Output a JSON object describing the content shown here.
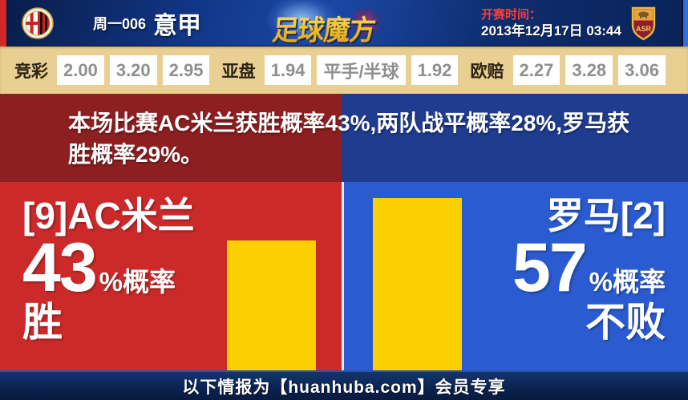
{
  "header": {
    "match_code": "周一006",
    "league": "意甲",
    "brand_logo_text": "足球魔方",
    "kickoff_label": "开赛时间：",
    "kickoff_time": "2013年12月17日 03:44",
    "home_crest": "ac-milan-crest",
    "away_crest": "roma-crest"
  },
  "odds_bar": {
    "jingcai": {
      "label": "竞彩",
      "win": "2.00",
      "draw": "3.20",
      "lose": "2.95"
    },
    "yapan": {
      "label": "亚盘",
      "home": "1.94",
      "handicap": "平手/半球",
      "away": "1.92"
    },
    "oupei": {
      "label": "欧赔",
      "win": "2.27",
      "draw": "3.28",
      "lose": "3.06"
    }
  },
  "summary": {
    "text": "本场比赛AC米兰获胜概率43%,两队战平概率28%,罗马获胜概率29%。"
  },
  "home_panel": {
    "team": "[9]AC米兰",
    "percent": "43",
    "percent_suffix": "%概率",
    "outcome": "胜"
  },
  "away_panel": {
    "team": "罗马[2]",
    "percent": "57",
    "percent_suffix": "%概率",
    "outcome": "不败"
  },
  "footer": {
    "text": "以下情报为【huanhuba.com】会员专享"
  },
  "chart_data": {
    "type": "bar",
    "categories": [
      "AC米兰 胜",
      "罗马 不败"
    ],
    "values": [
      43,
      57
    ],
    "probabilities": {
      "home_win_pct": 43,
      "draw_pct": 28,
      "away_win_pct": 29
    },
    "bar_color": "#fccf00",
    "ylim": [
      0,
      62
    ]
  },
  "colors": {
    "home_red": "#cc2a2a",
    "away_blue": "#2a5bd0",
    "dark_red": "#8e1f21",
    "dark_blue": "#1f3c8e",
    "odds_tan": "#e9cf92",
    "bar_yellow": "#fccf00",
    "kickoff_label_red": "#ef4040",
    "brand_gold": "#f7c629"
  }
}
